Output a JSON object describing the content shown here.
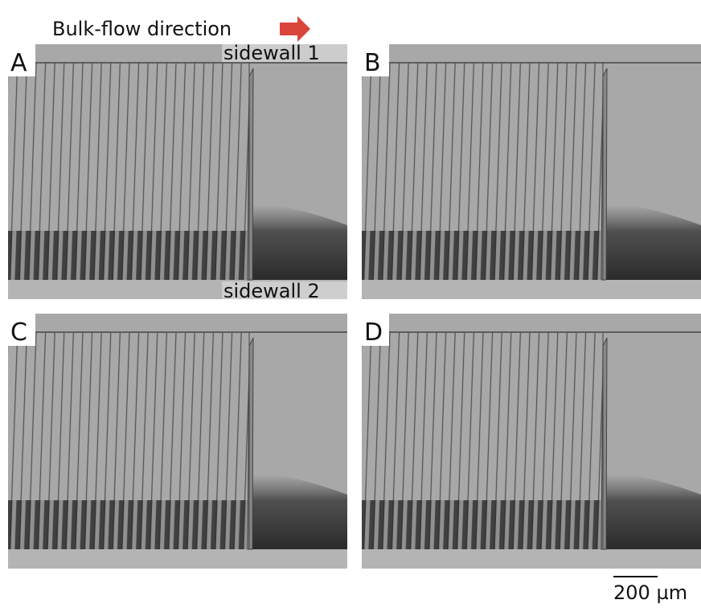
{
  "header": {
    "title": "Bulk-flow direction"
  },
  "panels": [
    {
      "label": "A"
    },
    {
      "label": "B"
    },
    {
      "label": "C"
    },
    {
      "label": "D"
    }
  ],
  "annotations": {
    "top_wall": "sidewall 1",
    "bottom_wall": "sidewall 2"
  },
  "scale_bar": {
    "label": "200 µm"
  }
}
